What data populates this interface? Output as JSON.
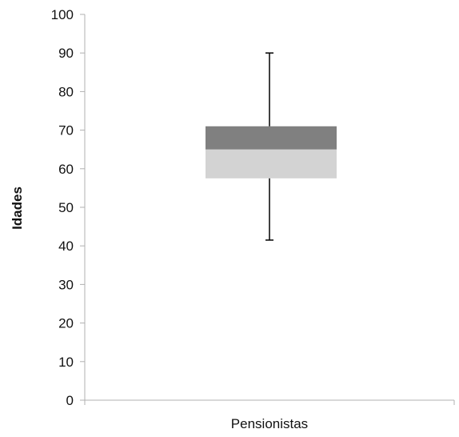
{
  "chart_data": {
    "type": "box",
    "title": "",
    "ylabel": "Idades",
    "xlabel": "Pensionistas",
    "categories": [
      "Pensionistas"
    ],
    "ylim": [
      0,
      100
    ],
    "yticks": [
      0,
      10,
      20,
      30,
      40,
      50,
      60,
      70,
      80,
      90,
      100
    ],
    "grid": false,
    "box": {
      "min": 41.5,
      "q1": 57.5,
      "median": 65,
      "q3": 71,
      "max": 90
    },
    "colors": {
      "lower_box": "#d3d3d3",
      "upper_box": "#808080",
      "whisker": "#000000",
      "axis": "#b0b0b0"
    }
  }
}
